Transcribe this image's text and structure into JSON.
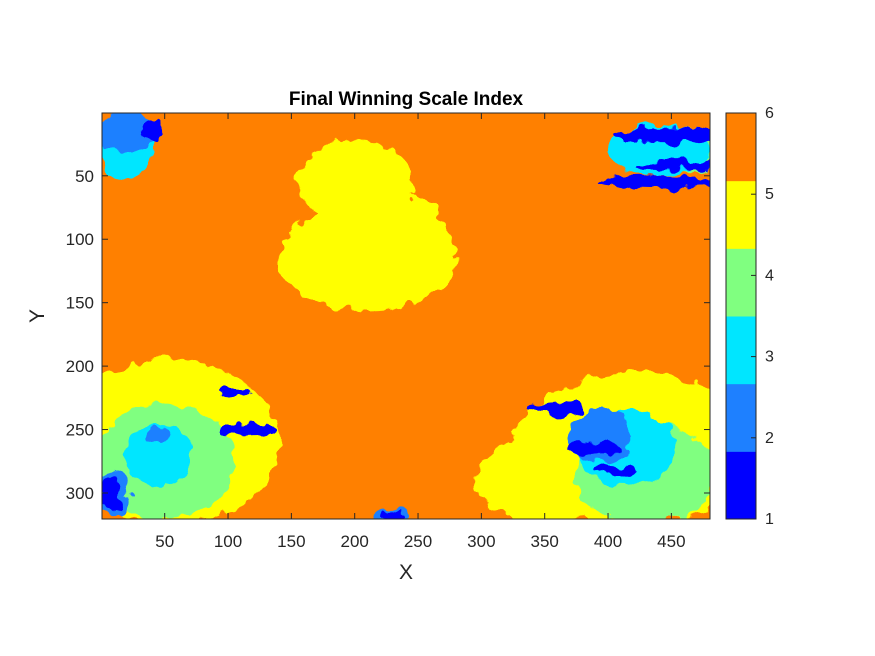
{
  "chart_data": {
    "type": "heatmap",
    "title": "Final Winning Scale Index",
    "xlabel": "X",
    "ylabel": "Y",
    "xlim": [
      0.5,
      480.5
    ],
    "ylim": [
      0.5,
      320.5
    ],
    "y_reversed": true,
    "x_ticks": [
      50,
      100,
      150,
      200,
      250,
      300,
      350,
      400,
      450
    ],
    "y_ticks": [
      50,
      100,
      150,
      200,
      250,
      300
    ],
    "colorbar": {
      "range": [
        1,
        6
      ],
      "ticks": [
        1,
        2,
        3,
        4,
        5,
        6
      ],
      "colors": [
        "#0000ff",
        "#1e80ff",
        "#00e6ff",
        "#80ff80",
        "#ffff00",
        "#ff8000"
      ]
    },
    "background_value": 6,
    "regions": [
      {
        "value": 5,
        "cx": 200,
        "cy": 55,
        "rx": 45,
        "ry": 33
      },
      {
        "value": 5,
        "cx": 210,
        "cy": 115,
        "rx": 70,
        "ry": 42
      },
      {
        "value": 5,
        "cx": 230,
        "cy": 90,
        "rx": 40,
        "ry": 25
      },
      {
        "value": 5,
        "cx": 55,
        "cy": 260,
        "rx": 85,
        "ry": 65
      },
      {
        "value": 5,
        "cx": 420,
        "cy": 265,
        "rx": 95,
        "ry": 60
      },
      {
        "value": 5,
        "cx": 350,
        "cy": 290,
        "rx": 55,
        "ry": 35
      },
      {
        "value": 4,
        "cx": 50,
        "cy": 275,
        "rx": 55,
        "ry": 45
      },
      {
        "value": 4,
        "cx": 430,
        "cy": 285,
        "rx": 55,
        "ry": 40
      },
      {
        "value": 4,
        "cx": 460,
        "cy": 30,
        "rx": 35,
        "ry": 18
      },
      {
        "value": 3,
        "cx": 45,
        "cy": 270,
        "rx": 28,
        "ry": 24
      },
      {
        "value": 3,
        "cx": 415,
        "cy": 265,
        "rx": 38,
        "ry": 30
      },
      {
        "value": 3,
        "cx": 440,
        "cy": 30,
        "rx": 40,
        "ry": 20
      },
      {
        "value": 3,
        "cx": 20,
        "cy": 30,
        "rx": 20,
        "ry": 22
      },
      {
        "value": 2,
        "cx": 20,
        "cy": 15,
        "rx": 25,
        "ry": 15
      },
      {
        "value": 2,
        "cx": 395,
        "cy": 255,
        "rx": 25,
        "ry": 22
      },
      {
        "value": 2,
        "cx": 8,
        "cy": 300,
        "rx": 14,
        "ry": 18
      },
      {
        "value": 2,
        "cx": 45,
        "cy": 255,
        "rx": 8,
        "ry": 7
      },
      {
        "value": 2,
        "cx": 230,
        "cy": 318,
        "rx": 12,
        "ry": 6
      },
      {
        "value": 1,
        "cx": 450,
        "cy": 18,
        "rx": 45,
        "ry": 6
      },
      {
        "value": 1,
        "cx": 440,
        "cy": 55,
        "rx": 45,
        "ry": 5
      },
      {
        "value": 1,
        "cx": 455,
        "cy": 42,
        "rx": 35,
        "ry": 4
      },
      {
        "value": 1,
        "cx": 360,
        "cy": 233,
        "rx": 22,
        "ry": 5
      },
      {
        "value": 1,
        "cx": 390,
        "cy": 265,
        "rx": 22,
        "ry": 5
      },
      {
        "value": 1,
        "cx": 405,
        "cy": 282,
        "rx": 15,
        "ry": 4
      },
      {
        "value": 1,
        "cx": 115,
        "cy": 250,
        "rx": 22,
        "ry": 5
      },
      {
        "value": 1,
        "cx": 105,
        "cy": 220,
        "rx": 14,
        "ry": 4
      },
      {
        "value": 1,
        "cx": 8,
        "cy": 300,
        "rx": 8,
        "ry": 14
      },
      {
        "value": 1,
        "cx": 230,
        "cy": 318,
        "rx": 8,
        "ry": 4
      },
      {
        "value": 1,
        "cx": 40,
        "cy": 15,
        "rx": 8,
        "ry": 10
      }
    ]
  }
}
